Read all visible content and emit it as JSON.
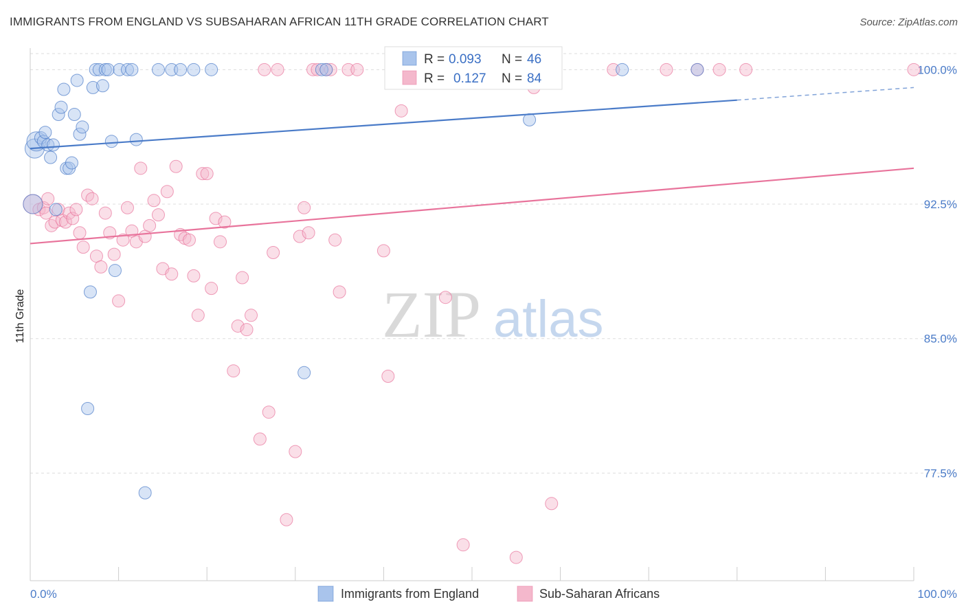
{
  "header": {
    "title": "IMMIGRANTS FROM ENGLAND VS SUBSAHARAN AFRICAN 11TH GRADE CORRELATION CHART",
    "source": "Source: ZipAtlas.com"
  },
  "watermark": {
    "zip": "ZIP",
    "atlas": "atlas"
  },
  "legend": {
    "rows": [
      {
        "r_label": "R =",
        "r_value": "0.093",
        "n_label": "N =",
        "n_value": "46"
      },
      {
        "r_label": "R =",
        "r_value": "0.127",
        "n_label": "N =",
        "n_value": "84"
      }
    ]
  },
  "bottom_legend": {
    "items": [
      {
        "label": "Immigrants from England"
      },
      {
        "label": "Sub-Saharan Africans"
      }
    ]
  },
  "colors": {
    "blue": "#4a7bc8",
    "blue_fill": "#a9c4ec",
    "pink": "#e8739b",
    "pink_fill": "#f4b8cc",
    "grid": "#dddddd"
  },
  "chart_data": {
    "type": "scatter",
    "title": "IMMIGRANTS FROM ENGLAND VS SUBSAHARAN AFRICAN 11TH GRADE CORRELATION CHART",
    "xlabel": "",
    "ylabel": "11th Grade",
    "xlim": [
      0,
      100
    ],
    "ylim": [
      71.5,
      101.2
    ],
    "x_tick_labels": [
      "0.0%",
      "100.0%"
    ],
    "y_ticks": [
      {
        "value": 100.0,
        "label": "100.0%"
      },
      {
        "value": 92.5,
        "label": "92.5%"
      },
      {
        "value": 85.0,
        "label": "85.0%"
      },
      {
        "value": 77.5,
        "label": "77.5%"
      }
    ],
    "grid": true,
    "legend_position": "top-center",
    "series": [
      {
        "name": "Immigrants from England",
        "color": "#4a7bc8",
        "trend": {
          "x0": 0,
          "y0": 95.6,
          "x1": 80,
          "y1": 98.3,
          "dash_to_x": 100,
          "dash_to_y": 99.0
        },
        "points": [
          [
            0.3,
            92.5
          ],
          [
            0.5,
            95.6
          ],
          [
            0.7,
            96.0
          ],
          [
            1.2,
            96.2
          ],
          [
            1.5,
            96.0
          ],
          [
            1.7,
            96.5
          ],
          [
            2.0,
            95.8
          ],
          [
            2.3,
            95.1
          ],
          [
            2.6,
            95.8
          ],
          [
            2.9,
            92.2
          ],
          [
            3.2,
            97.5
          ],
          [
            3.5,
            97.9
          ],
          [
            3.8,
            98.9
          ],
          [
            4.1,
            94.5
          ],
          [
            4.4,
            94.5
          ],
          [
            4.7,
            94.8
          ],
          [
            5.0,
            97.5
          ],
          [
            5.3,
            99.4
          ],
          [
            5.6,
            96.4
          ],
          [
            5.9,
            96.8
          ],
          [
            6.5,
            81.1
          ],
          [
            6.8,
            87.6
          ],
          [
            7.1,
            99.0
          ],
          [
            7.4,
            100.0
          ],
          [
            7.8,
            100.0
          ],
          [
            8.2,
            99.1
          ],
          [
            8.5,
            100.0
          ],
          [
            8.8,
            100.0
          ],
          [
            9.2,
            96.0
          ],
          [
            9.6,
            88.8
          ],
          [
            10.1,
            100.0
          ],
          [
            11.0,
            100.0
          ],
          [
            11.5,
            100.0
          ],
          [
            12.0,
            96.1
          ],
          [
            13.0,
            76.4
          ],
          [
            14.5,
            100.0
          ],
          [
            16.0,
            100.0
          ],
          [
            17.0,
            100.0
          ],
          [
            18.5,
            100.0
          ],
          [
            20.5,
            100.0
          ],
          [
            31.0,
            83.1
          ],
          [
            33.0,
            100.0
          ],
          [
            33.5,
            100.0
          ],
          [
            56.5,
            97.2
          ],
          [
            67.0,
            100.0
          ],
          [
            75.5,
            100.0
          ]
        ]
      },
      {
        "name": "Sub-Saharan Africans",
        "color": "#e8739b",
        "trend": {
          "x0": 0,
          "y0": 90.3,
          "x1": 100,
          "y1": 94.5
        },
        "points": [
          [
            0.3,
            92.5
          ],
          [
            1.0,
            92.2
          ],
          [
            1.5,
            92.3
          ],
          [
            2.0,
            92.8
          ],
          [
            2.4,
            91.3
          ],
          [
            2.8,
            91.5
          ],
          [
            3.2,
            92.2
          ],
          [
            3.6,
            91.6
          ],
          [
            4.0,
            91.5
          ],
          [
            4.4,
            92.0
          ],
          [
            4.8,
            91.7
          ],
          [
            5.2,
            92.2
          ],
          [
            5.6,
            90.9
          ],
          [
            6.0,
            90.1
          ],
          [
            6.5,
            93.0
          ],
          [
            7.0,
            92.8
          ],
          [
            7.5,
            89.6
          ],
          [
            8.0,
            89.0
          ],
          [
            8.5,
            92.0
          ],
          [
            9.0,
            90.9
          ],
          [
            9.5,
            89.7
          ],
          [
            10.0,
            87.1
          ],
          [
            10.5,
            90.5
          ],
          [
            11.0,
            92.3
          ],
          [
            11.5,
            91.0
          ],
          [
            12.0,
            90.4
          ],
          [
            12.5,
            94.5
          ],
          [
            13.0,
            90.7
          ],
          [
            13.5,
            91.3
          ],
          [
            14.0,
            92.7
          ],
          [
            14.5,
            91.9
          ],
          [
            15.0,
            88.9
          ],
          [
            15.5,
            93.2
          ],
          [
            16.0,
            88.6
          ],
          [
            16.5,
            94.6
          ],
          [
            17.0,
            90.8
          ],
          [
            17.5,
            90.6
          ],
          [
            18.0,
            90.5
          ],
          [
            18.5,
            88.5
          ],
          [
            19.0,
            86.3
          ],
          [
            19.5,
            94.2
          ],
          [
            20.0,
            94.2
          ],
          [
            20.5,
            87.8
          ],
          [
            21.0,
            91.7
          ],
          [
            21.5,
            90.4
          ],
          [
            22.0,
            91.5
          ],
          [
            23.0,
            83.2
          ],
          [
            23.5,
            85.7
          ],
          [
            24.0,
            88.4
          ],
          [
            24.5,
            85.5
          ],
          [
            25.0,
            86.3
          ],
          [
            26.0,
            79.4
          ],
          [
            27.0,
            80.9
          ],
          [
            27.5,
            89.8
          ],
          [
            28.0,
            100.0
          ],
          [
            29.0,
            74.9
          ],
          [
            30.0,
            78.7
          ],
          [
            30.5,
            90.7
          ],
          [
            31.0,
            92.3
          ],
          [
            31.5,
            90.9
          ],
          [
            32.0,
            100.0
          ],
          [
            32.5,
            100.0
          ],
          [
            33.5,
            100.0
          ],
          [
            34.0,
            100.0
          ],
          [
            34.5,
            90.5
          ],
          [
            35.0,
            87.6
          ],
          [
            36.0,
            100.0
          ],
          [
            37.0,
            100.0
          ],
          [
            40.0,
            89.9
          ],
          [
            40.5,
            82.9
          ],
          [
            42.0,
            97.7
          ],
          [
            47.0,
            87.3
          ],
          [
            49.0,
            73.5
          ],
          [
            55.0,
            72.8
          ],
          [
            57.0,
            99.0
          ],
          [
            59.0,
            75.8
          ],
          [
            66.0,
            100.0
          ],
          [
            72.0,
            100.0
          ],
          [
            75.5,
            100.0
          ],
          [
            78.0,
            100.0
          ],
          [
            81.0,
            100.0
          ],
          [
            100.0,
            100.0
          ],
          [
            1.8,
            92.0
          ],
          [
            26.5,
            100.0
          ]
        ]
      }
    ]
  }
}
